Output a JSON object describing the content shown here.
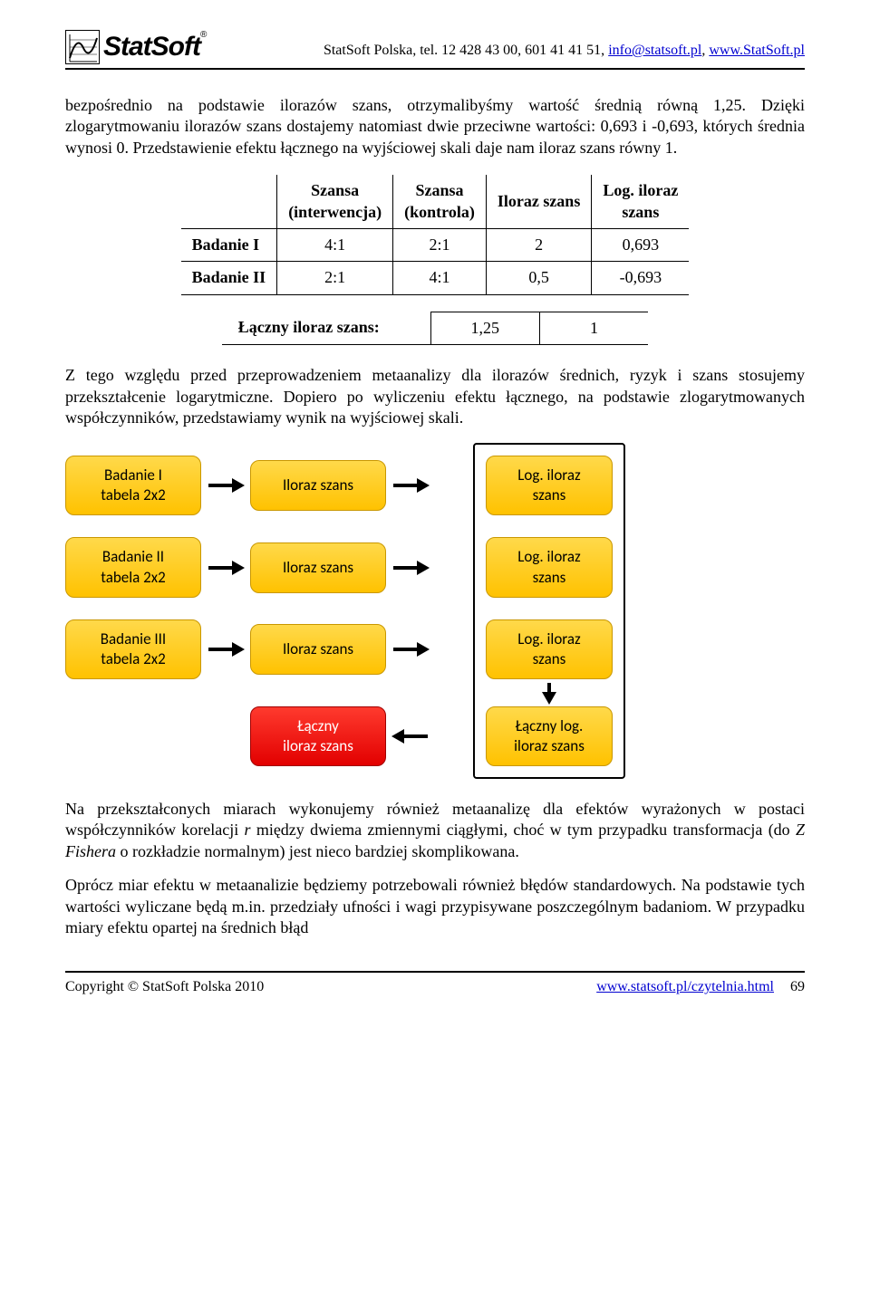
{
  "header": {
    "logo_text": "StatSoft",
    "line_prefix": "StatSoft Polska, tel. 12 428 43 00, 601 41 41 51, ",
    "email": "info@statsoft.pl",
    "sep": ", ",
    "site": "www.StatSoft.pl"
  },
  "para1": "bezpośrednio na podstawie ilorazów szans, otrzymalibyśmy wartość średnią równą 1,25. Dzięki zlogarytmowaniu ilorazów szans dostajemy natomiast dwie przeciwne wartości: 0,693 i -0,693, których średnia wynosi 0. Przedstawienie efektu łącznego na wyjściowej skali daje nam iloraz szans równy 1.",
  "table1": {
    "headers": [
      "Szansa\n(interwencja)",
      "Szansa\n(kontrola)",
      "Iloraz szans",
      "Log. iloraz\nszans"
    ],
    "rows": [
      {
        "label": "Badanie I",
        "cells": [
          "4:1",
          "2:1",
          "2",
          "0,693"
        ]
      },
      {
        "label": "Badanie II",
        "cells": [
          "2:1",
          "4:1",
          "0,5",
          "-0,693"
        ]
      }
    ]
  },
  "table2": {
    "label": "Łączny iloraz szans:",
    "cells": [
      "1,25",
      "1"
    ]
  },
  "para2": "Z tego względu przed przeprowadzeniem metaanalizy dla ilorazów średnich, ryzyk i szans stosujemy przekształcenie logarytmiczne. Dopiero po wyliczeniu efektu łącznego, na podstawie zlogarytmowanych współczynników, przedstawiamy wynik na wyjściowej skali.",
  "diagram": {
    "rows": [
      {
        "a": "Badanie I\ntabela 2x2",
        "b": "Iloraz szans",
        "c": "Log. iloraz\nszans"
      },
      {
        "a": "Badanie II\ntabela 2x2",
        "b": "Iloraz szans",
        "c": "Log. iloraz\nszans"
      },
      {
        "a": "Badanie III\ntabela 2x2",
        "b": "Iloraz szans",
        "c": "Log. iloraz\nszans"
      }
    ],
    "bottom": {
      "red": "Łączny\niloraz szans",
      "yellow": "Łączny log.\niloraz szans"
    },
    "colors": {
      "yellow_top": "#ffd94a",
      "yellow_bottom": "#ffc200",
      "yellow_border": "#c99700",
      "red_top": "#ff3a2e",
      "red_bottom": "#e20000",
      "red_border": "#a00000",
      "arrow": "#000000"
    }
  },
  "para3_parts": {
    "p1": "Na przekształconych miarach wykonujemy również metaanalizę dla efektów wyrażonych w postaci współczynników korelacji ",
    "i1": "r",
    "p2": " między dwiema zmiennymi ciągłymi, choć w tym przypadku transformacja (do ",
    "i2": "Z Fishera",
    "p3": " o rozkładzie normalnym) jest nieco bardziej skomplikowana."
  },
  "para4": "Oprócz miar efektu w metaanalizie będziemy potrzebowali również błędów standardowych. Na podstawie tych wartości wyliczane będą m.in. przedziały ufności i wagi przypisywane poszczególnym badaniom. W przypadku miary efektu opartej na średnich błąd",
  "footer": {
    "copyright": "Copyright © StatSoft Polska 2010",
    "link": "www.statsoft.pl/czytelnia.html",
    "page": "69"
  }
}
